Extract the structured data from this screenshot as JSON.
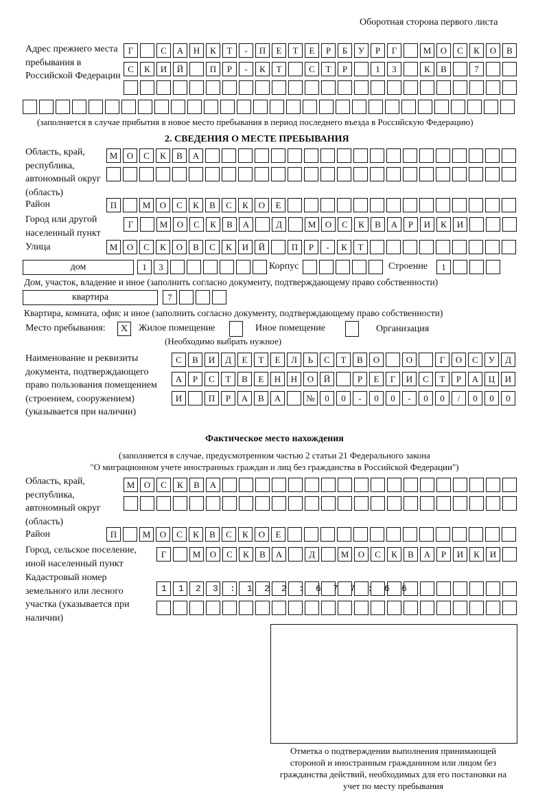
{
  "header": "Оборотная сторона первого листа",
  "previous_address": {
    "label": "Адрес прежнего места пребывания в Российской Федерации",
    "rows": [
      "Г САНКТ-ПЕТЕРБУРГ МОСКОВ",
      "СКИЙ ПР-КТ СТР 13 КВ 7",
      "",
      ""
    ],
    "note": "(заполняется в случае прибытия в новое место пребывания в период последнего въезда в Российскую Федерацию)"
  },
  "section2": {
    "title": "2. СВЕДЕНИЯ О МЕСТЕ ПРЕБЫВАНИЯ",
    "region_label": "Область, край, республика, автономный округ (область)",
    "region_rows": [
      "МОСКВА",
      ""
    ],
    "district_label": "Район",
    "district": "П МОСКВСКОЕ",
    "city_label": "Город или другой населенный пункт",
    "city": "Г МОСКВА Д МОСКВАРИКИ",
    "street_label": "Улица",
    "street": "МОСКОВСКИЙ ПР-КТ",
    "house_type": "дом",
    "house_number": "13",
    "korpus_label": "Корпус",
    "korpus": "",
    "building_label": "Строение",
    "building": "1",
    "house_note": "Дом, участок, владение и иное (заполнить согласно документу, подтверждающему право собственности)",
    "apartment_type": "квартира",
    "apartment_number": "7",
    "apartment_note": "Квартира, комната, офис и иное (заполнить согласно документу, подтверждающему право собственности)",
    "stay_place_label": "Место пребывания:",
    "options": [
      {
        "label": "Жилое помещение",
        "mark": "X"
      },
      {
        "label": "Иное помещение",
        "mark": ""
      },
      {
        "label": "Организация",
        "mark": ""
      }
    ],
    "options_note": "(Необходимо выбрать нужное)",
    "document_label": "Наименование и реквизиты документа, подтверждающего право пользования помещением (строением, сооружением) (указывается при наличии)",
    "document_rows": [
      "СВИДЕТЕЛЬСТВО О ГОСУД",
      "АРСТВЕННОЙ РЕГИСТРАЦИ",
      "И ПРАВА №00-00-00/000"
    ]
  },
  "actual": {
    "title": "Фактическое место нахождения",
    "note1": "(заполняется в случае, предусмотренном частью 2 статьи 21 Федерального закона",
    "note2": "\"О миграционном учете иностранных граждан и лиц без гражданства в Российской Федерации\")",
    "region_label": "Область, край, республика, автономный округ (область)",
    "region_rows": [
      "МОСКВА",
      ""
    ],
    "district_label": "Район",
    "district": "П МОСКВСКОЕ",
    "city_label": "Город, сельское поселение, иной населенный пункт",
    "city": "Г МОСКВА Д МОСКВАРИКИ",
    "cadastre_label": "Кадастровый номер земельного или лесного участка (указывается при наличии)",
    "cadastre_rows": [
      "1123:122:677:66",
      ""
    ]
  },
  "stamp_caption": "Отметка о подтверждении выполнения принимающей стороной и иностранным гражданином или лицом без гражданства действий, необходимых для его постановки на учет по месту пребывания"
}
